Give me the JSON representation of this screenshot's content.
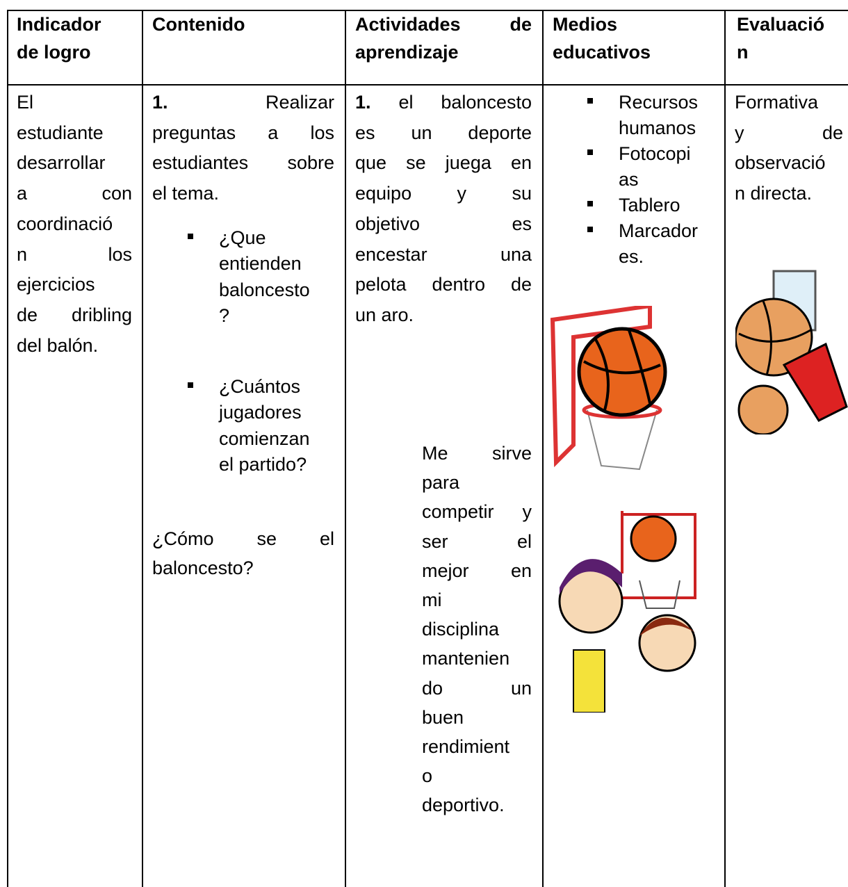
{
  "table": {
    "headers": [
      [
        "Indicador",
        "de logro"
      ],
      [
        "Contenido"
      ],
      [
        "Actividades de",
        "aprendizaje"
      ],
      [
        "Medios",
        "educativos"
      ],
      [
        "Evaluació",
        "n"
      ]
    ],
    "indicator": [
      "El",
      "estudiante",
      "desarrollar",
      "a con",
      "coordinació",
      "n los",
      "ejercicios",
      "de dribling",
      "del balón."
    ],
    "content": {
      "number": "1.",
      "intro": [
        "Realizar",
        "preguntas a los",
        "estudiantes sobre",
        "el tema."
      ],
      "questions": [
        [
          "¿Que",
          "entienden",
          "baloncesto",
          "?"
        ],
        [
          "¿Cuántos",
          "jugadores",
          "comienzan",
          "el partido?"
        ]
      ],
      "closing": [
        "¿Cómo se el",
        "baloncesto?"
      ]
    },
    "activities": {
      "number": "1.",
      "definition": [
        "el baloncesto",
        "es un deporte",
        "que se juega en",
        "equipo y su",
        "objetivo es",
        "encestar una",
        "pelota dentro de",
        "un aro."
      ],
      "purpose": [
        "Me sirve",
        "para",
        "competir y",
        "ser el",
        "mejor en",
        "mi",
        "disciplina",
        "mantenien",
        "do un",
        "buen",
        "rendimient",
        "o",
        "deportivo."
      ]
    },
    "media": [
      [
        "Recursos",
        "humanos"
      ],
      [
        "Fotocopi",
        "as"
      ],
      [
        "Tablero"
      ],
      [
        "Marcador",
        "es."
      ]
    ],
    "evaluation": [
      "Formativa",
      "y de",
      "observació",
      "n directa."
    ]
  }
}
